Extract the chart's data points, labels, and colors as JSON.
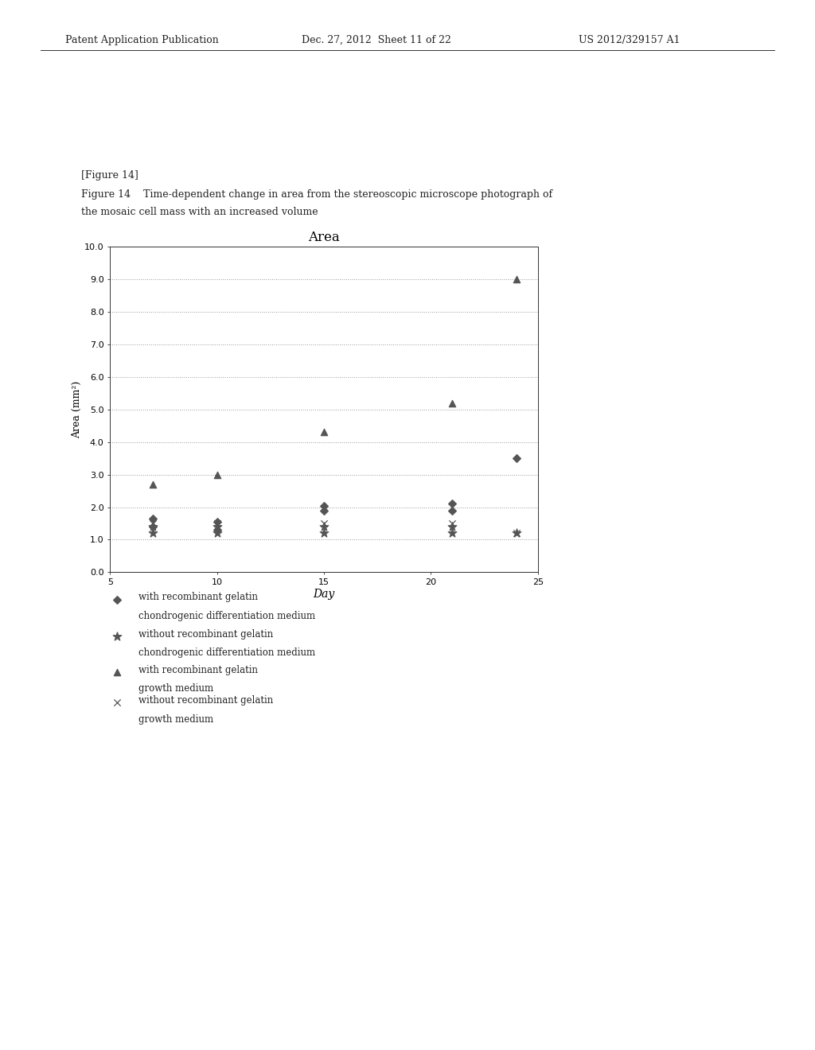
{
  "title": "Area",
  "xlabel": "Day",
  "ylabel": "Area (mm²)",
  "xlim": [
    5,
    25
  ],
  "ylim": [
    0.0,
    10.0
  ],
  "xticks": [
    5,
    10,
    15,
    20,
    25
  ],
  "ytick_labels": [
    "0.0",
    "1.0",
    "2.0",
    "3.0",
    "4.0",
    "5.0",
    "6.0",
    "7.0",
    "8.0",
    "9.0",
    "10.0"
  ],
  "yticks": [
    0.0,
    1.0,
    2.0,
    3.0,
    4.0,
    5.0,
    6.0,
    7.0,
    8.0,
    9.0,
    10.0
  ],
  "series": [
    {
      "label_line1": "with recombinant gelatin",
      "label_line2": "chondrogenic differentiation medium",
      "marker": "D",
      "color": "#555555",
      "markersize": 5,
      "x": [
        7,
        7,
        10,
        10,
        15,
        15,
        21,
        21,
        24
      ],
      "y": [
        1.4,
        1.65,
        1.3,
        1.55,
        1.9,
        2.05,
        1.9,
        2.1,
        3.5
      ]
    },
    {
      "label_line1": "without recombinant gelatin",
      "label_line2": "chondrogenic differentiation medium",
      "marker": "*",
      "color": "#555555",
      "markersize": 8,
      "x": [
        7,
        7,
        10,
        10,
        15,
        15,
        21,
        21,
        24
      ],
      "y": [
        1.2,
        1.4,
        1.2,
        1.4,
        1.2,
        1.4,
        1.2,
        1.4,
        1.2
      ]
    },
    {
      "label_line1": "with recombinant gelatin",
      "label_line2": "growth medium",
      "marker": "^",
      "color": "#555555",
      "markersize": 6,
      "x": [
        7,
        10,
        15,
        21,
        24
      ],
      "y": [
        2.7,
        3.0,
        4.3,
        5.2,
        9.0
      ]
    },
    {
      "label_line1": "without recombinant gelatin",
      "label_line2": "growth medium",
      "marker": "x",
      "color": "#555555",
      "markersize": 6,
      "x": [
        7,
        10,
        15,
        21,
        24
      ],
      "y": [
        1.5,
        1.5,
        1.5,
        1.5,
        1.2
      ]
    }
  ],
  "figure_label": "[Figure 14]",
  "figure_caption_line1": "Figure 14    Time-dependent change in area from the stereoscopic microscope photograph of",
  "figure_caption_line2": "the mosaic cell mass with an increased volume",
  "header_left": "Patent Application Publication",
  "header_center": "Dec. 27, 2012  Sheet 11 of 22",
  "header_right": "US 2012/329157 A1",
  "bg_color": "#ffffff",
  "grid_color": "#999999"
}
